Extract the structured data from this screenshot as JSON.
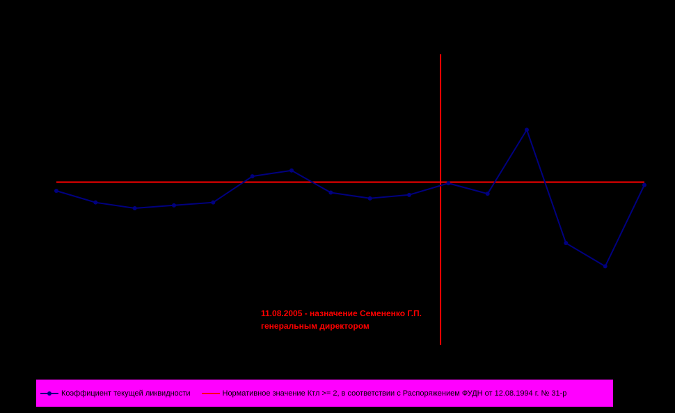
{
  "chart_data": {
    "type": "line",
    "series": [
      {
        "name": "Коэффициент текущей ликвидности",
        "color": "#000080",
        "values": [
          1.85,
          1.65,
          1.55,
          1.6,
          1.65,
          2.1,
          2.2,
          1.82,
          1.72,
          1.78,
          1.98,
          1.8,
          2.9,
          0.95,
          0.55,
          1.95
        ]
      }
    ],
    "norm": {
      "label": "Нормативное значение Ктл >= 2, в соответствии с Распоряжением ФУДН от 12.08.1994 г. № 31-р",
      "value": 2,
      "color": "#ff0000"
    },
    "event_marker": {
      "position_index": 9.8,
      "color": "#ff0000",
      "annotation_lines": [
        "11.08.2005 - назначение Семененко Г.П.",
        "генеральным директором"
      ]
    },
    "ylim": [
      -0.8,
      4.2
    ],
    "grid": false,
    "legend_position": "bottom"
  }
}
